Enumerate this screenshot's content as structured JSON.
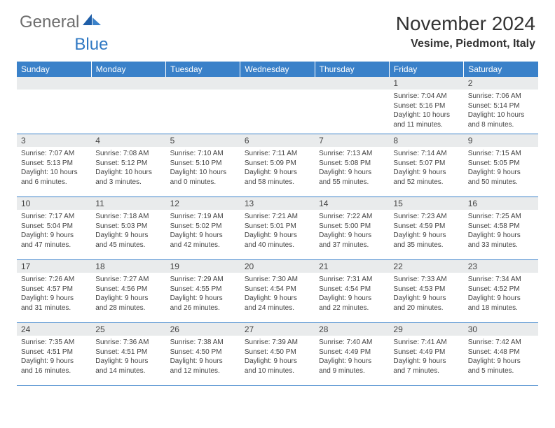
{
  "logo": {
    "gray": "General",
    "blue": "Blue"
  },
  "title": "November 2024",
  "location": "Vesime, Piedmont, Italy",
  "colors": {
    "header_bg": "#3a81c9",
    "header_text": "#ffffff",
    "daynum_bg": "#e9ebec",
    "cell_border": "#3a81c9",
    "logo_gray": "#6e6e6e",
    "logo_blue": "#2f78c3"
  },
  "day_headers": [
    "Sunday",
    "Monday",
    "Tuesday",
    "Wednesday",
    "Thursday",
    "Friday",
    "Saturday"
  ],
  "weeks": [
    [
      {
        "n": "",
        "sr": "",
        "ss": "",
        "dl": ""
      },
      {
        "n": "",
        "sr": "",
        "ss": "",
        "dl": ""
      },
      {
        "n": "",
        "sr": "",
        "ss": "",
        "dl": ""
      },
      {
        "n": "",
        "sr": "",
        "ss": "",
        "dl": ""
      },
      {
        "n": "",
        "sr": "",
        "ss": "",
        "dl": ""
      },
      {
        "n": "1",
        "sr": "Sunrise: 7:04 AM",
        "ss": "Sunset: 5:16 PM",
        "dl": "Daylight: 10 hours and 11 minutes."
      },
      {
        "n": "2",
        "sr": "Sunrise: 7:06 AM",
        "ss": "Sunset: 5:14 PM",
        "dl": "Daylight: 10 hours and 8 minutes."
      }
    ],
    [
      {
        "n": "3",
        "sr": "Sunrise: 7:07 AM",
        "ss": "Sunset: 5:13 PM",
        "dl": "Daylight: 10 hours and 6 minutes."
      },
      {
        "n": "4",
        "sr": "Sunrise: 7:08 AM",
        "ss": "Sunset: 5:12 PM",
        "dl": "Daylight: 10 hours and 3 minutes."
      },
      {
        "n": "5",
        "sr": "Sunrise: 7:10 AM",
        "ss": "Sunset: 5:10 PM",
        "dl": "Daylight: 10 hours and 0 minutes."
      },
      {
        "n": "6",
        "sr": "Sunrise: 7:11 AM",
        "ss": "Sunset: 5:09 PM",
        "dl": "Daylight: 9 hours and 58 minutes."
      },
      {
        "n": "7",
        "sr": "Sunrise: 7:13 AM",
        "ss": "Sunset: 5:08 PM",
        "dl": "Daylight: 9 hours and 55 minutes."
      },
      {
        "n": "8",
        "sr": "Sunrise: 7:14 AM",
        "ss": "Sunset: 5:07 PM",
        "dl": "Daylight: 9 hours and 52 minutes."
      },
      {
        "n": "9",
        "sr": "Sunrise: 7:15 AM",
        "ss": "Sunset: 5:05 PM",
        "dl": "Daylight: 9 hours and 50 minutes."
      }
    ],
    [
      {
        "n": "10",
        "sr": "Sunrise: 7:17 AM",
        "ss": "Sunset: 5:04 PM",
        "dl": "Daylight: 9 hours and 47 minutes."
      },
      {
        "n": "11",
        "sr": "Sunrise: 7:18 AM",
        "ss": "Sunset: 5:03 PM",
        "dl": "Daylight: 9 hours and 45 minutes."
      },
      {
        "n": "12",
        "sr": "Sunrise: 7:19 AM",
        "ss": "Sunset: 5:02 PM",
        "dl": "Daylight: 9 hours and 42 minutes."
      },
      {
        "n": "13",
        "sr": "Sunrise: 7:21 AM",
        "ss": "Sunset: 5:01 PM",
        "dl": "Daylight: 9 hours and 40 minutes."
      },
      {
        "n": "14",
        "sr": "Sunrise: 7:22 AM",
        "ss": "Sunset: 5:00 PM",
        "dl": "Daylight: 9 hours and 37 minutes."
      },
      {
        "n": "15",
        "sr": "Sunrise: 7:23 AM",
        "ss": "Sunset: 4:59 PM",
        "dl": "Daylight: 9 hours and 35 minutes."
      },
      {
        "n": "16",
        "sr": "Sunrise: 7:25 AM",
        "ss": "Sunset: 4:58 PM",
        "dl": "Daylight: 9 hours and 33 minutes."
      }
    ],
    [
      {
        "n": "17",
        "sr": "Sunrise: 7:26 AM",
        "ss": "Sunset: 4:57 PM",
        "dl": "Daylight: 9 hours and 31 minutes."
      },
      {
        "n": "18",
        "sr": "Sunrise: 7:27 AM",
        "ss": "Sunset: 4:56 PM",
        "dl": "Daylight: 9 hours and 28 minutes."
      },
      {
        "n": "19",
        "sr": "Sunrise: 7:29 AM",
        "ss": "Sunset: 4:55 PM",
        "dl": "Daylight: 9 hours and 26 minutes."
      },
      {
        "n": "20",
        "sr": "Sunrise: 7:30 AM",
        "ss": "Sunset: 4:54 PM",
        "dl": "Daylight: 9 hours and 24 minutes."
      },
      {
        "n": "21",
        "sr": "Sunrise: 7:31 AM",
        "ss": "Sunset: 4:54 PM",
        "dl": "Daylight: 9 hours and 22 minutes."
      },
      {
        "n": "22",
        "sr": "Sunrise: 7:33 AM",
        "ss": "Sunset: 4:53 PM",
        "dl": "Daylight: 9 hours and 20 minutes."
      },
      {
        "n": "23",
        "sr": "Sunrise: 7:34 AM",
        "ss": "Sunset: 4:52 PM",
        "dl": "Daylight: 9 hours and 18 minutes."
      }
    ],
    [
      {
        "n": "24",
        "sr": "Sunrise: 7:35 AM",
        "ss": "Sunset: 4:51 PM",
        "dl": "Daylight: 9 hours and 16 minutes."
      },
      {
        "n": "25",
        "sr": "Sunrise: 7:36 AM",
        "ss": "Sunset: 4:51 PM",
        "dl": "Daylight: 9 hours and 14 minutes."
      },
      {
        "n": "26",
        "sr": "Sunrise: 7:38 AM",
        "ss": "Sunset: 4:50 PM",
        "dl": "Daylight: 9 hours and 12 minutes."
      },
      {
        "n": "27",
        "sr": "Sunrise: 7:39 AM",
        "ss": "Sunset: 4:50 PM",
        "dl": "Daylight: 9 hours and 10 minutes."
      },
      {
        "n": "28",
        "sr": "Sunrise: 7:40 AM",
        "ss": "Sunset: 4:49 PM",
        "dl": "Daylight: 9 hours and 9 minutes."
      },
      {
        "n": "29",
        "sr": "Sunrise: 7:41 AM",
        "ss": "Sunset: 4:49 PM",
        "dl": "Daylight: 9 hours and 7 minutes."
      },
      {
        "n": "30",
        "sr": "Sunrise: 7:42 AM",
        "ss": "Sunset: 4:48 PM",
        "dl": "Daylight: 9 hours and 5 minutes."
      }
    ]
  ]
}
